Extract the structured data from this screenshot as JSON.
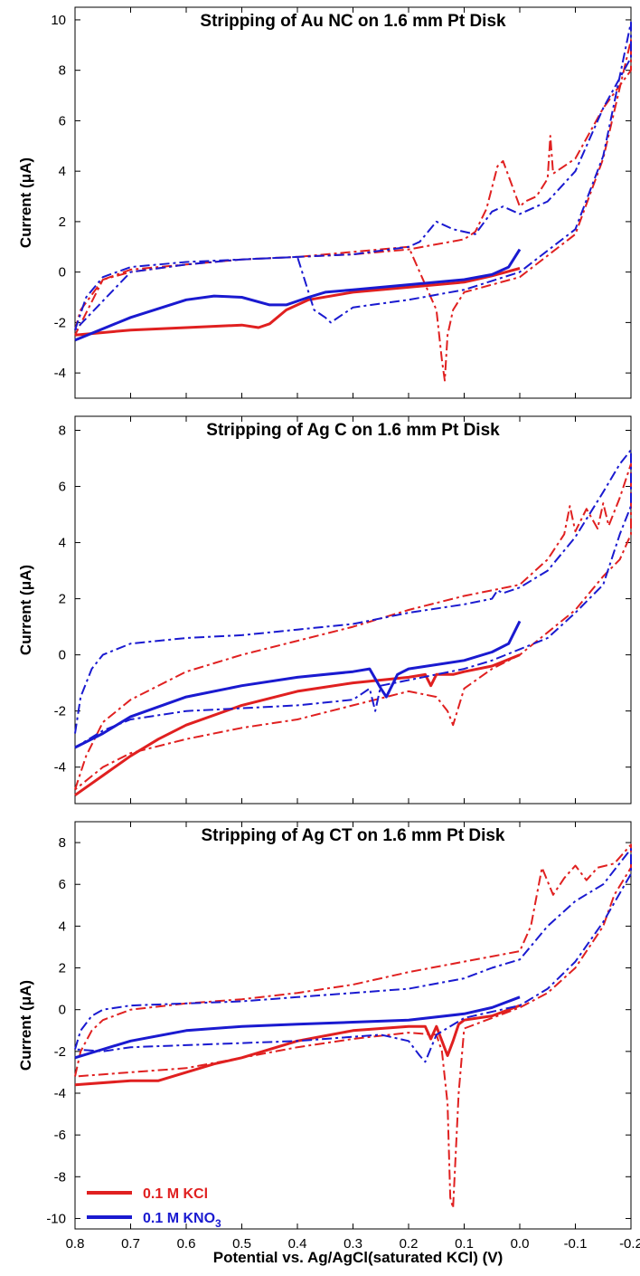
{
  "figure": {
    "xlabel": "Potential vs. Ag/AgCl(saturated KCl) (V)",
    "legend": {
      "placement": "bottom-left of panel 3",
      "entries": [
        {
          "label": "0.1 M KCl",
          "color": "#e02020"
        },
        {
          "label": "0.1 M KNO",
          "sub": "3",
          "color": "#1a1ad0"
        }
      ]
    }
  },
  "chart_data": [
    {
      "type": "line",
      "title": "Stripping of Au NC on 1.6 mm Pt Disk",
      "ylabel": "Current (μA)",
      "xlim": [
        0.8,
        -0.2
      ],
      "ylim": [
        -5,
        10.5
      ],
      "xticks": [
        0.8,
        0.7,
        0.6,
        0.5,
        0.4,
        0.3,
        0.2,
        0.1,
        0.0,
        -0.1,
        -0.2
      ],
      "xtick_labels": [
        "0.8",
        "0.7",
        "0.6",
        "0.5",
        "0.4",
        "0.3",
        "0.2",
        "0.1",
        "0.0",
        "-0.1",
        "-0.2"
      ],
      "yticks": [
        -4,
        -2,
        0,
        2,
        4,
        6,
        8,
        10
      ],
      "ytick_labels": [
        "-4",
        "-2",
        "0",
        "2",
        "4",
        "6",
        "8",
        "10"
      ],
      "series": [
        {
          "color": "#e02020",
          "style": "solid",
          "x": [
            0.8,
            0.7,
            0.6,
            0.5,
            0.47,
            0.45,
            0.42,
            0.38,
            0.3,
            0.2,
            0.1,
            0.05,
            0.0
          ],
          "y": [
            -2.5,
            -2.3,
            -2.2,
            -2.1,
            -2.2,
            -2.05,
            -1.5,
            -1.1,
            -0.8,
            -0.6,
            -0.4,
            -0.15,
            0.15
          ]
        },
        {
          "color": "#e02020",
          "style": "dashdot",
          "x": [
            0.8,
            0.79,
            0.75,
            0.7,
            0.6,
            0.5,
            0.4,
            0.3,
            0.2,
            0.15,
            0.14,
            0.135,
            0.13,
            0.12,
            0.1,
            0.0,
            -0.1,
            -0.15,
            -0.2,
            -0.2,
            -0.15,
            -0.1,
            -0.06,
            -0.055,
            -0.05,
            -0.03,
            -0.01,
            0.0,
            0.03,
            0.04,
            0.06,
            0.08,
            0.1,
            0.2,
            0.3,
            0.4,
            0.5,
            0.6,
            0.7,
            0.75,
            0.8
          ],
          "y": [
            -2.3,
            -1.5,
            -0.3,
            0.1,
            0.3,
            0.5,
            0.6,
            0.8,
            1.0,
            -1.5,
            -3.5,
            -4.3,
            -2.5,
            -1.5,
            -0.8,
            -0.2,
            1.5,
            4.5,
            9.2,
            8.0,
            6.5,
            4.5,
            3.9,
            5.4,
            3.7,
            3.0,
            2.8,
            2.6,
            4.4,
            4.2,
            2.5,
            1.6,
            1.3,
            0.9,
            0.7,
            0.6,
            0.5,
            0.3,
            0.0,
            -0.3,
            -2.5
          ]
        },
        {
          "color": "#1a1ad0",
          "style": "solid",
          "x": [
            0.8,
            0.7,
            0.6,
            0.55,
            0.5,
            0.45,
            0.42,
            0.38,
            0.35,
            0.3,
            0.2,
            0.1,
            0.05,
            0.02,
            0.0
          ],
          "y": [
            -2.7,
            -1.8,
            -1.1,
            -0.95,
            -1.0,
            -1.3,
            -1.3,
            -1.0,
            -0.8,
            -0.7,
            -0.5,
            -0.3,
            -0.1,
            0.2,
            0.9
          ]
        },
        {
          "color": "#1a1ad0",
          "style": "dashdot",
          "x": [
            0.8,
            0.78,
            0.75,
            0.7,
            0.6,
            0.5,
            0.4,
            0.37,
            0.35,
            0.34,
            0.3,
            0.2,
            0.1,
            0.0,
            -0.1,
            -0.15,
            -0.2,
            -0.2,
            -0.15,
            -0.1,
            -0.05,
            0.0,
            0.03,
            0.05,
            0.08,
            0.12,
            0.15,
            0.18,
            0.2,
            0.3,
            0.4,
            0.5,
            0.6,
            0.7,
            0.8
          ],
          "y": [
            -2.3,
            -1.0,
            -0.2,
            0.2,
            0.4,
            0.5,
            0.6,
            -1.5,
            -1.8,
            -2.0,
            -1.4,
            -1.1,
            -0.7,
            0.0,
            1.7,
            4.6,
            9.9,
            8.5,
            6.5,
            4.0,
            2.8,
            2.3,
            2.6,
            2.4,
            1.5,
            1.7,
            2.0,
            1.2,
            1.0,
            0.7,
            0.6,
            0.5,
            0.3,
            0.0,
            -2.3
          ]
        }
      ]
    },
    {
      "type": "line",
      "title": "Stripping of Ag C on 1.6 mm Pt Disk",
      "ylabel": "Current (μA)",
      "xlim": [
        0.8,
        -0.2
      ],
      "ylim": [
        -5.3,
        8.5
      ],
      "xticks": [
        0.8,
        0.7,
        0.6,
        0.5,
        0.4,
        0.3,
        0.2,
        0.1,
        0.0,
        -0.1,
        -0.2
      ],
      "xtick_labels": [
        "0.8",
        "0.7",
        "0.6",
        "0.5",
        "0.4",
        "0.3",
        "0.2",
        "0.1",
        "0.0",
        "-0.1",
        "-0.2"
      ],
      "yticks": [
        -4,
        -2,
        0,
        2,
        4,
        6,
        8
      ],
      "ytick_labels": [
        "-4",
        "-2",
        "0",
        "2",
        "4",
        "6",
        "8"
      ],
      "series": [
        {
          "color": "#e02020",
          "style": "solid",
          "x": [
            0.8,
            0.75,
            0.7,
            0.65,
            0.6,
            0.5,
            0.4,
            0.3,
            0.2,
            0.17,
            0.16,
            0.15,
            0.12,
            0.1,
            0.05,
            0.0
          ],
          "y": [
            -5.0,
            -4.3,
            -3.6,
            -3.0,
            -2.5,
            -1.8,
            -1.3,
            -1.0,
            -0.8,
            -0.7,
            -1.1,
            -0.7,
            -0.7,
            -0.6,
            -0.4,
            0.0
          ]
        },
        {
          "color": "#e02020",
          "style": "dashdot",
          "x": [
            0.8,
            0.78,
            0.75,
            0.7,
            0.6,
            0.5,
            0.4,
            0.3,
            0.2,
            0.1,
            0.0,
            -0.05,
            -0.08,
            -0.09,
            -0.1,
            -0.12,
            -0.14,
            -0.15,
            -0.16,
            -0.18,
            -0.2,
            -0.2,
            -0.18,
            -0.15,
            -0.1,
            -0.05,
            0.0,
            0.05,
            0.1,
            0.12,
            0.13,
            0.15,
            0.2,
            0.3,
            0.4,
            0.5,
            0.6,
            0.7,
            0.75,
            0.8
          ],
          "y": [
            -4.8,
            -3.6,
            -2.4,
            -1.6,
            -0.6,
            0.0,
            0.5,
            1.0,
            1.6,
            2.1,
            2.5,
            3.4,
            4.3,
            5.3,
            4.4,
            5.2,
            4.5,
            5.4,
            4.6,
            5.6,
            6.8,
            4.3,
            3.4,
            2.8,
            1.6,
            0.8,
            0.0,
            -0.5,
            -1.2,
            -2.5,
            -2.0,
            -1.5,
            -1.3,
            -1.8,
            -2.3,
            -2.6,
            -3.0,
            -3.5,
            -4.0,
            -4.8
          ]
        },
        {
          "color": "#1a1ad0",
          "style": "solid",
          "x": [
            0.8,
            0.75,
            0.7,
            0.6,
            0.5,
            0.4,
            0.3,
            0.27,
            0.25,
            0.24,
            0.22,
            0.2,
            0.1,
            0.05,
            0.02,
            0.0
          ],
          "y": [
            -3.3,
            -2.8,
            -2.2,
            -1.5,
            -1.1,
            -0.8,
            -0.6,
            -0.5,
            -1.2,
            -1.5,
            -0.7,
            -0.5,
            -0.2,
            0.1,
            0.4,
            1.2
          ]
        },
        {
          "color": "#1a1ad0",
          "style": "dashdot",
          "x": [
            0.8,
            0.79,
            0.77,
            0.75,
            0.7,
            0.6,
            0.5,
            0.4,
            0.3,
            0.2,
            0.1,
            0.05,
            0.04,
            0.03,
            0.0,
            -0.05,
            -0.1,
            -0.15,
            -0.18,
            -0.2,
            -0.2,
            -0.18,
            -0.15,
            -0.1,
            -0.05,
            0.0,
            0.05,
            0.1,
            0.2,
            0.25,
            0.26,
            0.27,
            0.3,
            0.4,
            0.5,
            0.6,
            0.7,
            0.75,
            0.8
          ],
          "y": [
            -2.8,
            -1.5,
            -0.5,
            0.0,
            0.4,
            0.6,
            0.7,
            0.9,
            1.1,
            1.5,
            1.8,
            2.0,
            2.3,
            2.2,
            2.4,
            3.0,
            4.2,
            5.8,
            6.8,
            7.3,
            5.3,
            4.3,
            2.5,
            1.5,
            0.6,
            0.2,
            -0.2,
            -0.5,
            -0.9,
            -1.1,
            -2.0,
            -1.2,
            -1.6,
            -1.8,
            -1.9,
            -2.0,
            -2.3,
            -2.7,
            -3.3
          ]
        }
      ]
    },
    {
      "type": "line",
      "title": "Stripping of Ag CT on 1.6 mm Pt Disk",
      "ylabel": "Current (μA)",
      "xlim": [
        0.8,
        -0.2
      ],
      "ylim": [
        -10.5,
        9
      ],
      "xticks": [
        0.8,
        0.7,
        0.6,
        0.5,
        0.4,
        0.3,
        0.2,
        0.1,
        0.0,
        -0.1,
        -0.2
      ],
      "xtick_labels": [
        "0.8",
        "0.7",
        "0.6",
        "0.5",
        "0.4",
        "0.3",
        "0.2",
        "0.1",
        "0.0",
        "-0.1",
        "-0.2"
      ],
      "yticks": [
        -10,
        -8,
        -6,
        -4,
        -2,
        0,
        2,
        4,
        6,
        8
      ],
      "ytick_labels": [
        "-10",
        "-8",
        "-6",
        "-4",
        "-2",
        "0",
        "2",
        "4",
        "6",
        "8"
      ],
      "series": [
        {
          "color": "#e02020",
          "style": "solid",
          "x": [
            0.8,
            0.7,
            0.65,
            0.6,
            0.55,
            0.5,
            0.4,
            0.3,
            0.2,
            0.17,
            0.16,
            0.15,
            0.14,
            0.13,
            0.12,
            0.11,
            0.1,
            0.05,
            0.0
          ],
          "y": [
            -3.6,
            -3.4,
            -3.4,
            -3.0,
            -2.6,
            -2.3,
            -1.5,
            -1.0,
            -0.8,
            -0.8,
            -1.4,
            -0.8,
            -1.5,
            -2.2,
            -1.5,
            -0.7,
            -0.5,
            -0.3,
            0.2
          ]
        },
        {
          "color": "#e02020",
          "style": "dashdot",
          "x": [
            0.8,
            0.79,
            0.77,
            0.75,
            0.7,
            0.6,
            0.5,
            0.4,
            0.3,
            0.2,
            0.1,
            0.0,
            -0.02,
            -0.04,
            -0.06,
            -0.08,
            -0.1,
            -0.12,
            -0.14,
            -0.17,
            -0.2,
            -0.2,
            -0.17,
            -0.15,
            -0.12,
            -0.1,
            -0.05,
            0.0,
            0.05,
            0.1,
            0.11,
            0.12,
            0.125,
            0.13,
            0.14,
            0.15,
            0.2,
            0.3,
            0.4,
            0.5,
            0.6,
            0.7,
            0.75,
            0.8
          ],
          "y": [
            -3.2,
            -2.0,
            -1.0,
            -0.5,
            0.0,
            0.3,
            0.5,
            0.8,
            1.2,
            1.8,
            2.3,
            2.8,
            4.0,
            6.8,
            5.5,
            6.3,
            6.9,
            6.2,
            6.8,
            7.0,
            7.9,
            6.8,
            5.5,
            4.0,
            2.8,
            2.0,
            0.8,
            0.1,
            -0.4,
            -0.9,
            -4.0,
            -9.5,
            -9.0,
            -4.5,
            -2.0,
            -1.2,
            -1.1,
            -1.4,
            -1.8,
            -2.3,
            -2.8,
            -3.0,
            -3.1,
            -3.2
          ]
        },
        {
          "color": "#1a1ad0",
          "style": "solid",
          "x": [
            0.8,
            0.75,
            0.7,
            0.6,
            0.5,
            0.4,
            0.3,
            0.2,
            0.1,
            0.05,
            0.0
          ],
          "y": [
            -2.3,
            -1.9,
            -1.5,
            -1.0,
            -0.8,
            -0.7,
            -0.6,
            -0.5,
            -0.2,
            0.1,
            0.6
          ]
        },
        {
          "color": "#1a1ad0",
          "style": "dashdot",
          "x": [
            0.8,
            0.79,
            0.77,
            0.75,
            0.7,
            0.6,
            0.5,
            0.4,
            0.3,
            0.2,
            0.1,
            0.05,
            0.0,
            -0.05,
            -0.1,
            -0.15,
            -0.2,
            -0.2,
            -0.15,
            -0.1,
            -0.05,
            0.0,
            0.1,
            0.15,
            0.17,
            0.18,
            0.2,
            0.25,
            0.3,
            0.4,
            0.5,
            0.6,
            0.7,
            0.75,
            0.8
          ],
          "y": [
            -1.9,
            -1.0,
            -0.3,
            0.0,
            0.2,
            0.3,
            0.4,
            0.6,
            0.8,
            1.0,
            1.5,
            2.0,
            2.4,
            4.0,
            5.2,
            6.0,
            7.7,
            6.5,
            4.2,
            2.3,
            1.0,
            0.2,
            -0.4,
            -1.2,
            -2.5,
            -2.2,
            -1.5,
            -1.2,
            -1.3,
            -1.5,
            -1.6,
            -1.7,
            -1.8,
            -2.0,
            -1.9
          ]
        }
      ]
    }
  ]
}
